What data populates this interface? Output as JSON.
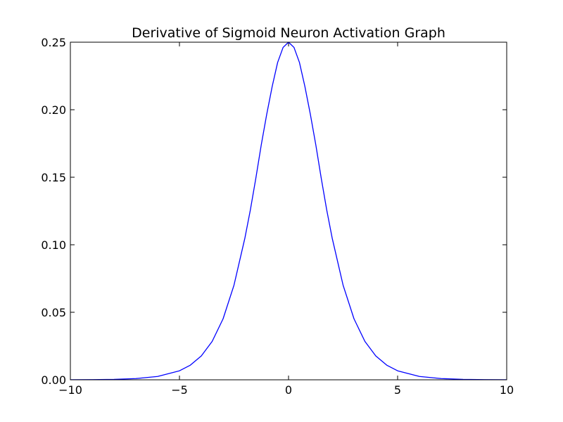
{
  "chart_data": {
    "type": "line",
    "title": "Derivative of Sigmoid Neuron Activation Graph",
    "xlabel": "",
    "ylabel": "",
    "xlim": [
      -10,
      10
    ],
    "ylim": [
      0.0,
      0.25
    ],
    "xticks": [
      -10,
      -5,
      0,
      5,
      10
    ],
    "xtick_labels": [
      "−10",
      "−5",
      "0",
      "5",
      "10"
    ],
    "yticks": [
      0.0,
      0.05,
      0.1,
      0.15,
      0.2,
      0.25
    ],
    "ytick_labels": [
      "0.00",
      "0.05",
      "0.10",
      "0.15",
      "0.20",
      "0.25"
    ],
    "grid": false,
    "series": [
      {
        "color": "#0000ff",
        "x": [
          -10,
          -9,
          -8,
          -7,
          -6,
          -5,
          -4.5,
          -4,
          -3.5,
          -3,
          -2.5,
          -2,
          -1.75,
          -1.5,
          -1.25,
          -1,
          -0.75,
          -0.5,
          -0.25,
          0,
          0.25,
          0.5,
          0.75,
          1,
          1.25,
          1.5,
          1.75,
          2,
          2.5,
          3,
          3.5,
          4,
          4.5,
          5,
          6,
          7,
          8,
          9,
          10
        ],
        "y": [
          4.54e-05,
          0.0001234,
          0.000335,
          0.00091,
          0.00247,
          0.00665,
          0.01086,
          0.01766,
          0.02845,
          0.04518,
          0.0701,
          0.10499,
          0.1258,
          0.14915,
          0.17399,
          0.19661,
          0.21717,
          0.235,
          0.24613,
          0.25,
          0.24613,
          0.235,
          0.21717,
          0.19661,
          0.17399,
          0.14915,
          0.1258,
          0.10499,
          0.0701,
          0.04518,
          0.02845,
          0.01766,
          0.01086,
          0.00665,
          0.00247,
          0.00091,
          0.000335,
          0.0001234,
          4.54e-05
        ]
      }
    ]
  }
}
